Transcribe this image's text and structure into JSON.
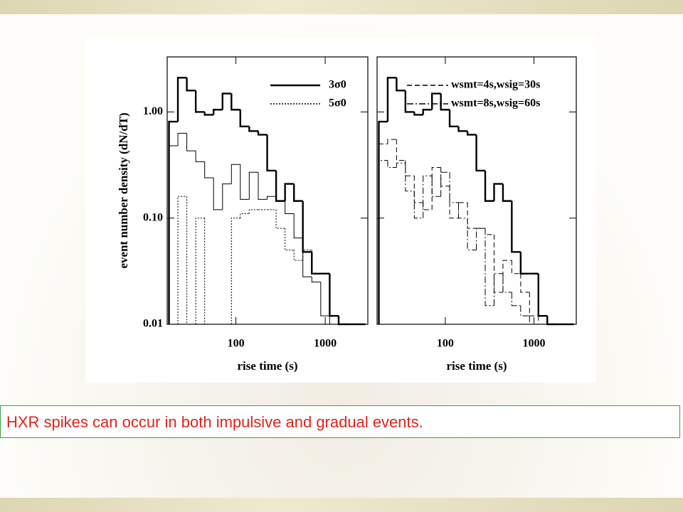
{
  "chart_data": [
    {
      "type": "histogram",
      "xscale": "log",
      "yscale": "log",
      "xlabel": "rise time (s)",
      "ylabel": "event number density (dN/dT)",
      "xlim": [
        17,
        3000
      ],
      "ylim": [
        0.01,
        3.3
      ],
      "xticks": [
        100,
        1000
      ],
      "yticks": [
        {
          "value": 1,
          "label": "1.00"
        },
        {
          "value": 0.1,
          "label": "0.10"
        },
        0.01
      ],
      "bins": [
        17.8,
        22.4,
        28.2,
        35.5,
        44.7,
        56.2,
        70.8,
        89.1,
        112,
        141,
        178,
        224,
        282,
        355,
        447,
        562,
        708,
        891,
        1122,
        1413,
        1778,
        2239,
        2818
      ],
      "series": [
        {
          "name": "3σ0",
          "color": "#000000",
          "line_style": "solid",
          "line_width": 2.4,
          "values": [
            0.81,
            2.1,
            1.59,
            1.0,
            0.94,
            1.05,
            1.49,
            1.05,
            0.73,
            0.66,
            0.61,
            0.28,
            0.145,
            0.21,
            0.145,
            0.048,
            0.03,
            0.03,
            0.012,
            0.01,
            0.01,
            0.01
          ]
        },
        {
          "color": "#000000",
          "line_style": "solid",
          "line_width": 1,
          "values": [
            0.48,
            0.63,
            0.43,
            0.34,
            0.24,
            0.12,
            0.21,
            0.32,
            0.15,
            0.27,
            0.15,
            0.16,
            0.145,
            0.11,
            0.065,
            0.028,
            0.025,
            0.012,
            0.01,
            0.01,
            0.01,
            0.01
          ]
        },
        {
          "name": "5σ0",
          "color": "#000000",
          "line_style": "dotted",
          "line_width": 1,
          "values": [
            0.01,
            0.16,
            0.01,
            0.1,
            0.01,
            0.01,
            0.01,
            0.1,
            0.11,
            0.12,
            0.12,
            0.12,
            0.08,
            0.05,
            0.04,
            0.05,
            0.03,
            0.03,
            0.012,
            0.01,
            0.01,
            0.01
          ]
        }
      ]
    },
    {
      "type": "histogram",
      "xscale": "log",
      "yscale": "log",
      "xlabel": "rise time (s)",
      "xlim": [
        17,
        3000
      ],
      "ylim": [
        0.01,
        3.3
      ],
      "xticks": [
        100,
        1000
      ],
      "yticks": [
        0.01,
        0.1,
        1
      ],
      "bins": [
        17.8,
        22.4,
        28.2,
        35.5,
        44.7,
        56.2,
        70.8,
        89.1,
        112,
        141,
        178,
        224,
        282,
        355,
        447,
        562,
        708,
        891,
        1122,
        1413,
        1778,
        2239,
        2818
      ],
      "series": [
        {
          "color": "#000000",
          "line_style": "solid",
          "line_width": 2.4,
          "values": [
            0.81,
            2.1,
            1.59,
            1.0,
            0.94,
            1.05,
            1.49,
            1.05,
            0.73,
            0.66,
            0.61,
            0.28,
            0.145,
            0.21,
            0.145,
            0.048,
            0.03,
            0.03,
            0.012,
            0.01,
            0.01,
            0.01
          ]
        },
        {
          "name": "wsmt=4s,wsig=30s",
          "color": "#000000",
          "line_style": "dashed",
          "line_width": 1,
          "values": [
            0.5,
            0.55,
            0.35,
            0.25,
            0.14,
            0.12,
            0.3,
            0.2,
            0.1,
            0.14,
            0.08,
            0.08,
            0.07,
            0.02,
            0.04,
            0.03,
            0.02,
            0.012,
            0.01,
            0.01,
            0.01,
            0.01
          ]
        },
        {
          "name": "wsmt=8s,wsig=60s",
          "color": "#000000",
          "line_style": "dashdot",
          "line_width": 1,
          "values": [
            0.35,
            0.3,
            0.33,
            0.18,
            0.1,
            0.25,
            0.16,
            0.27,
            0.14,
            0.1,
            0.05,
            0.08,
            0.015,
            0.03,
            0.02,
            0.015,
            0.012,
            0.01,
            0.01,
            0.01,
            0.01,
            0.01
          ]
        }
      ]
    }
  ],
  "caption": "HXR spikes can occur in both impulsive and gradual events."
}
